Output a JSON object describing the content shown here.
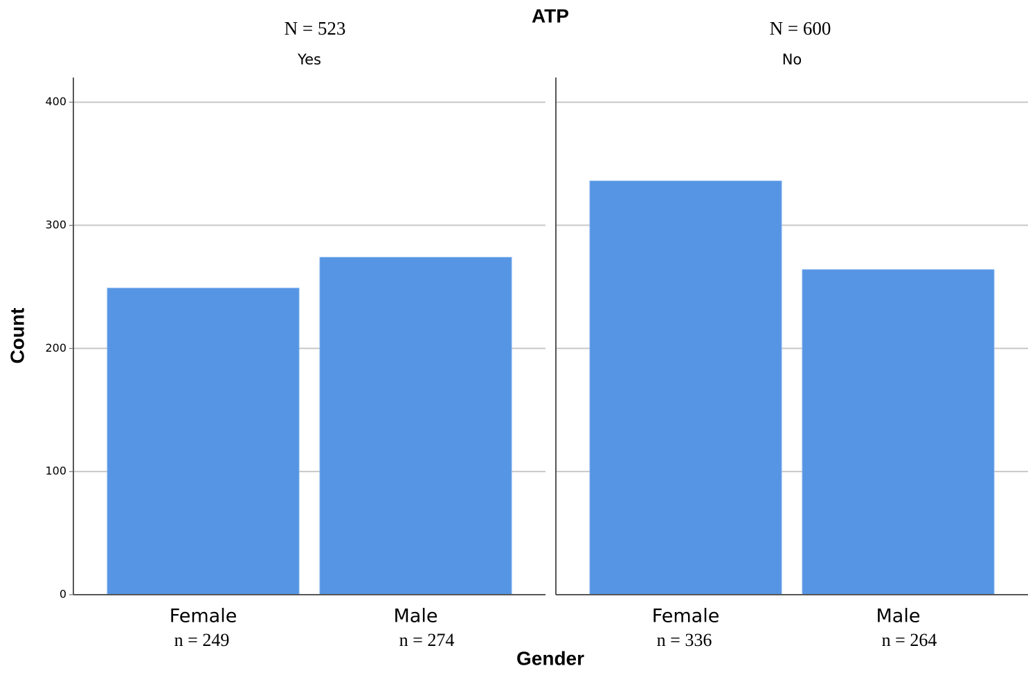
{
  "chart_data": {
    "type": "bar",
    "title": "ATP",
    "ylabel": "Count",
    "xlabel": "Gender",
    "ylim": [
      0,
      420
    ],
    "yticks": [
      0,
      100,
      200,
      300,
      400
    ],
    "grid": true,
    "color": "#5595e3",
    "panels": [
      {
        "title": "N = 523",
        "subtitle": "Yes",
        "categories": [
          "Female",
          "Male"
        ],
        "values": [
          249,
          274
        ],
        "value_labels": [
          "n = 249",
          "n = 274"
        ]
      },
      {
        "title": "N = 600",
        "subtitle": "No",
        "categories": [
          "Female",
          "Male"
        ],
        "values": [
          336,
          264
        ],
        "value_labels": [
          "n = 336",
          "n = 264"
        ]
      }
    ]
  }
}
